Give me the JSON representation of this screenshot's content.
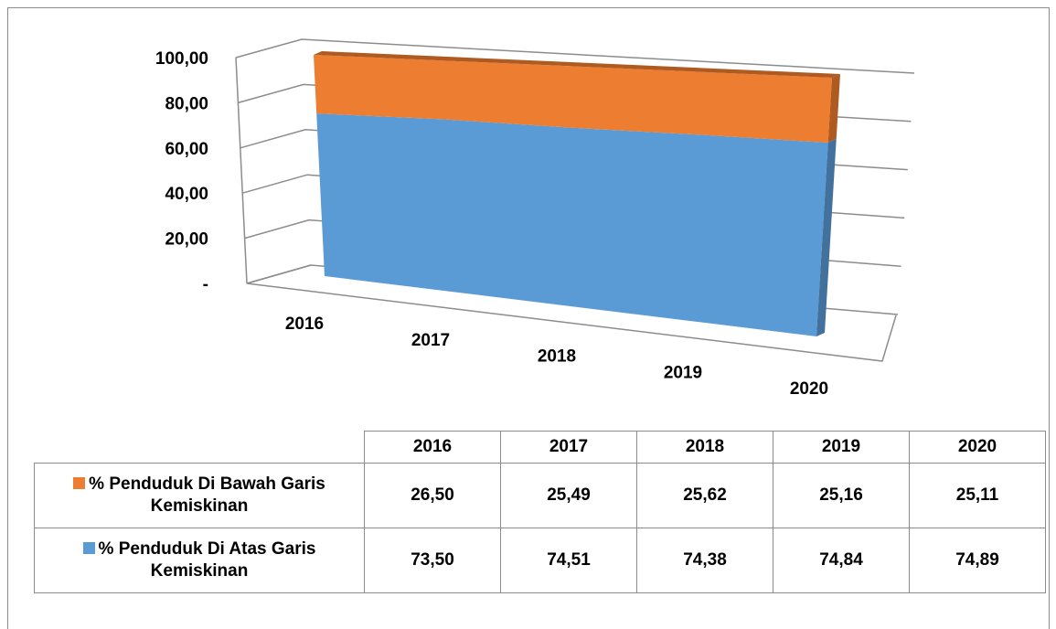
{
  "chart_data": {
    "type": "area3d",
    "categories": [
      "2016",
      "2017",
      "2018",
      "2019",
      "2020"
    ],
    "series": [
      {
        "name": "% Penduduk Di Atas Garis Kemiskinan",
        "color": "#5b9bd5",
        "values": [
          73.5,
          74.51,
          74.38,
          74.84,
          74.89
        ],
        "value_labels": [
          "73,50",
          "74,51",
          "74,38",
          "74,84",
          "74,89"
        ]
      },
      {
        "name": "% Penduduk Di Bawah Garis Kemiskinan",
        "color": "#ed7d31",
        "values": [
          26.5,
          25.49,
          25.62,
          25.16,
          25.11
        ],
        "value_labels": [
          "26,50",
          "25,49",
          "25,62",
          "25,16",
          "25,11"
        ]
      }
    ],
    "stacked": true,
    "ylim": [
      0,
      100
    ],
    "yticks": [
      {
        "value": 0,
        "label": "-"
      },
      {
        "value": 20,
        "label": "20,00"
      },
      {
        "value": 40,
        "label": "40,00"
      },
      {
        "value": 60,
        "label": "60,00"
      },
      {
        "value": 80,
        "label": "80,00"
      },
      {
        "value": 100,
        "label": "100,00"
      }
    ],
    "grid": true
  }
}
